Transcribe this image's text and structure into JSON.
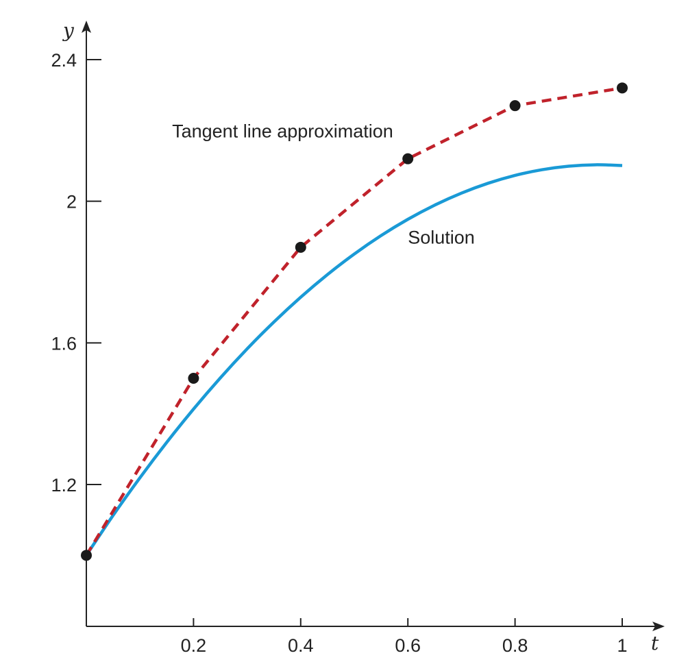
{
  "chart_data": {
    "type": "line",
    "xlabel": "t",
    "ylabel": "y",
    "xlim": [
      0,
      1.05
    ],
    "ylim": [
      0.8,
      2.4
    ],
    "x_ticks": [
      0.2,
      0.4,
      0.6,
      0.8,
      1
    ],
    "x_tick_labels": [
      "0.2",
      "0.4",
      "0.6",
      "0.8",
      "1"
    ],
    "y_ticks": [
      1.2,
      1.6,
      2,
      2.4
    ],
    "y_tick_labels": [
      "1.2",
      "1.6",
      "2",
      "2.4"
    ],
    "grid": false,
    "series": [
      {
        "name": "Solution",
        "style": "solid",
        "color": "#1a9ad6",
        "x": [
          0,
          0.05,
          0.1,
          0.15,
          0.2,
          0.25,
          0.3,
          0.35,
          0.4,
          0.45,
          0.5,
          0.55,
          0.6,
          0.65,
          0.7,
          0.75,
          0.8,
          0.85,
          0.9,
          0.95,
          1
        ],
        "y": [
          1.0,
          1.113,
          1.219,
          1.319,
          1.413,
          1.501,
          1.583,
          1.659,
          1.729,
          1.793,
          1.851,
          1.903,
          1.949,
          1.989,
          2.023,
          2.051,
          2.073,
          2.089,
          2.099,
          2.103,
          2.101
        ]
      },
      {
        "name": "Tangent line approximation",
        "style": "dashed",
        "color": "#c0222b",
        "markers": true,
        "marker_color": "#1a1a1a",
        "x": [
          0,
          0.2,
          0.4,
          0.6,
          0.8,
          1
        ],
        "y": [
          1.0,
          1.5,
          1.87,
          2.12,
          2.27,
          2.32
        ]
      }
    ],
    "annotations": [
      {
        "text": "Tangent line approximation",
        "x": 0.16,
        "y": 2.2
      },
      {
        "text": "Solution",
        "x": 0.6,
        "y": 1.9
      }
    ]
  }
}
